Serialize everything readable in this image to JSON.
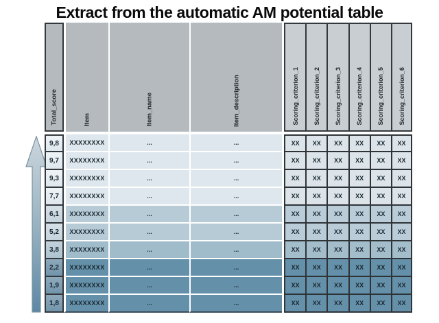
{
  "title": "Extract from the automatic AM potential table",
  "arrow": {
    "name": "increasing-total-score-arrow",
    "direction": "up",
    "gradient_top": "#ccd6dd",
    "gradient_mid": "#9ab3c2",
    "gradient_bottom": "#5d88a4",
    "stroke": "#78929f"
  },
  "colors": {
    "header_bg": "#b5babe",
    "scoring_header_bg": "#c9ced3",
    "grid_border": "#33383d",
    "row_separator": "#ffffff",
    "text": "#18262f",
    "tiers": [
      {
        "row": "#dee7ed",
        "score_light": "#eef3f6",
        "score": "#dfe8ee",
        "xx": "#dce4ea"
      },
      {
        "row": "#b7cbd6",
        "score_light": "#d6e0e7",
        "score": "#c5d3dc",
        "xx": "#b9ccd7"
      },
      {
        "row": "#a0bcca",
        "score_light": "#c2d2db",
        "score": "#adc4d0",
        "xx": "#a3bdcb"
      },
      {
        "row": "#6590a9",
        "score_light": "#8fa9bb",
        "score": "#7195ac",
        "xx": "#6590a9"
      }
    ]
  },
  "table": {
    "columns": [
      {
        "key": "total_score",
        "label": "Total_score"
      },
      {
        "key": "item",
        "label": "Item"
      },
      {
        "key": "item_name",
        "label": "Item_name"
      },
      {
        "key": "item_description",
        "label": "Item_description"
      },
      {
        "key": "sc1",
        "label": "Scoring_criterion_1"
      },
      {
        "key": "sc2",
        "label": "Scoring_criterion_2"
      },
      {
        "key": "sc3",
        "label": "Scoring_criterion_3"
      },
      {
        "key": "sc4",
        "label": "Scoring_criterion_4"
      },
      {
        "key": "sc5",
        "label": "Scoring_criterion_5"
      },
      {
        "key": "sc6",
        "label": "Scoring_criterion_6"
      }
    ],
    "rows": [
      {
        "total_score": "9,8",
        "item": "XXXXXXXX",
        "item_name": "...",
        "item_description": "...",
        "scores": [
          "XX",
          "XX",
          "XX",
          "XX",
          "XX",
          "XX"
        ],
        "tier": 0
      },
      {
        "total_score": "9,7",
        "item": "XXXXXXXX",
        "item_name": "...",
        "item_description": "...",
        "scores": [
          "XX",
          "XX",
          "XX",
          "XX",
          "XX",
          "XX"
        ],
        "tier": 0
      },
      {
        "total_score": "9,3",
        "item": "XXXXXXXX",
        "item_name": "...",
        "item_description": "...",
        "scores": [
          "XX",
          "XX",
          "XX",
          "XX",
          "XX",
          "XX"
        ],
        "tier": 0
      },
      {
        "total_score": "7,7",
        "item": "XXXXXXXX",
        "item_name": "...",
        "item_description": "...",
        "scores": [
          "XX",
          "XX",
          "XX",
          "XX",
          "XX",
          "XX"
        ],
        "tier": 0
      },
      {
        "total_score": "6,1",
        "item": "XXXXXXXX",
        "item_name": "...",
        "item_description": "...",
        "scores": [
          "XX",
          "XX",
          "XX",
          "XX",
          "XX",
          "XX"
        ],
        "tier": 1
      },
      {
        "total_score": "5,2",
        "item": "XXXXXXXX",
        "item_name": "...",
        "item_description": "...",
        "scores": [
          "XX",
          "XX",
          "XX",
          "XX",
          "XX",
          "XX"
        ],
        "tier": 1
      },
      {
        "total_score": "3,8",
        "item": "XXXXXXXX",
        "item_name": "...",
        "item_description": "...",
        "scores": [
          "XX",
          "XX",
          "XX",
          "XX",
          "XX",
          "XX"
        ],
        "tier": 2
      },
      {
        "total_score": "2,2",
        "item": "XXXXXXXX",
        "item_name": "...",
        "item_description": "...",
        "scores": [
          "XX",
          "XX",
          "XX",
          "XX",
          "XX",
          "XX"
        ],
        "tier": 3
      },
      {
        "total_score": "1,9",
        "item": "XXXXXXXX",
        "item_name": "...",
        "item_description": "...",
        "scores": [
          "XX",
          "XX",
          "XX",
          "XX",
          "XX",
          "XX"
        ],
        "tier": 3
      },
      {
        "total_score": "1,8",
        "item": "XXXXXXXX",
        "item_name": "...",
        "item_description": "...",
        "scores": [
          "XX",
          "XX",
          "XX",
          "XX",
          "XX",
          "XX"
        ],
        "tier": 3
      }
    ]
  }
}
